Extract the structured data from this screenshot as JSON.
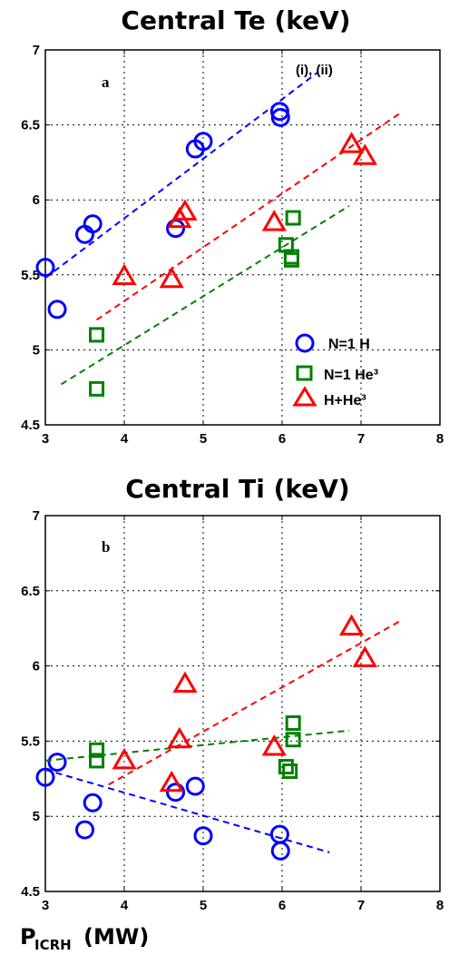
{
  "chart_data": [
    {
      "type": "scatter",
      "title": "Central Te (keV)",
      "panel_label": "a",
      "annotation": "(i), (ii)",
      "xlim": [
        3,
        8
      ],
      "ylim": [
        4.5,
        7
      ],
      "xticks": [
        "3",
        "4",
        "5",
        "6",
        "7",
        "8"
      ],
      "yticks": [
        "4.5",
        "5",
        "5.5",
        "6",
        "6.5",
        "7"
      ],
      "grid": true,
      "legend_position": "bottom-right",
      "series": [
        {
          "name": "N=1 H",
          "marker": "circle",
          "color": "#0000ff",
          "points": [
            [
              3.0,
              5.55
            ],
            [
              3.15,
              5.27
            ],
            [
              3.5,
              5.77
            ],
            [
              3.6,
              5.84
            ],
            [
              4.65,
              5.81
            ],
            [
              4.9,
              6.34
            ],
            [
              5.0,
              6.39
            ],
            [
              5.97,
              6.59
            ],
            [
              5.98,
              6.55
            ]
          ],
          "fit": [
            [
              3.0,
              5.48
            ],
            [
              6.45,
              6.85
            ]
          ]
        },
        {
          "name": "N=1 He³",
          "marker": "square",
          "color": "#008000",
          "points": [
            [
              3.65,
              5.1
            ],
            [
              3.65,
              4.74
            ],
            [
              6.05,
              5.7
            ],
            [
              6.12,
              5.62
            ],
            [
              6.14,
              5.88
            ],
            [
              6.12,
              5.6
            ]
          ],
          "fit": [
            [
              3.2,
              4.77
            ],
            [
              6.85,
              5.96
            ]
          ]
        },
        {
          "name": "H+He³",
          "marker": "triangle",
          "color": "#ff0000",
          "points": [
            [
              4.0,
              5.49
            ],
            [
              4.6,
              5.47
            ],
            [
              4.7,
              5.87
            ],
            [
              4.77,
              5.92
            ],
            [
              5.9,
              5.85
            ],
            [
              6.88,
              6.37
            ],
            [
              7.05,
              6.29
            ]
          ],
          "fit": [
            [
              3.65,
              5.2
            ],
            [
              7.5,
              6.58
            ]
          ]
        }
      ]
    },
    {
      "type": "scatter",
      "title": "Central Ti (keV)",
      "panel_label": "b",
      "xlabel_main": "P",
      "xlabel_sub": "ICRH",
      "xlabel_unit": "(MW)",
      "xlim": [
        3,
        8
      ],
      "ylim": [
        4.5,
        7
      ],
      "xticks": [
        "3",
        "4",
        "5",
        "6",
        "7",
        "8"
      ],
      "yticks": [
        "4.5",
        "5",
        "5.5",
        "6",
        "6.5",
        "7"
      ],
      "grid": true,
      "series": [
        {
          "name": "N=1 H",
          "marker": "circle",
          "color": "#0000ff",
          "points": [
            [
              3.0,
              5.26
            ],
            [
              3.15,
              5.36
            ],
            [
              3.5,
              4.91
            ],
            [
              3.6,
              5.09
            ],
            [
              4.65,
              5.16
            ],
            [
              4.9,
              5.2
            ],
            [
              5.0,
              4.87
            ],
            [
              5.97,
              4.88
            ],
            [
              5.98,
              4.77
            ]
          ],
          "fit": [
            [
              3.0,
              5.31
            ],
            [
              6.6,
              4.76
            ]
          ]
        },
        {
          "name": "N=1 He³",
          "marker": "square",
          "color": "#008000",
          "points": [
            [
              3.65,
              5.44
            ],
            [
              3.65,
              5.37
            ],
            [
              6.05,
              5.33
            ],
            [
              6.1,
              5.3
            ],
            [
              6.14,
              5.51
            ],
            [
              6.14,
              5.62
            ]
          ],
          "fit": [
            [
              3.0,
              5.37
            ],
            [
              6.85,
              5.57
            ]
          ]
        },
        {
          "name": "H+He³",
          "marker": "triangle",
          "color": "#ff0000",
          "points": [
            [
              4.0,
              5.37
            ],
            [
              4.6,
              5.22
            ],
            [
              4.7,
              5.51
            ],
            [
              4.77,
              5.88
            ],
            [
              5.9,
              5.46
            ],
            [
              6.88,
              6.26
            ],
            [
              7.05,
              6.05
            ]
          ],
          "fit": [
            [
              3.8,
              5.21
            ],
            [
              7.5,
              6.3
            ]
          ]
        }
      ]
    }
  ]
}
